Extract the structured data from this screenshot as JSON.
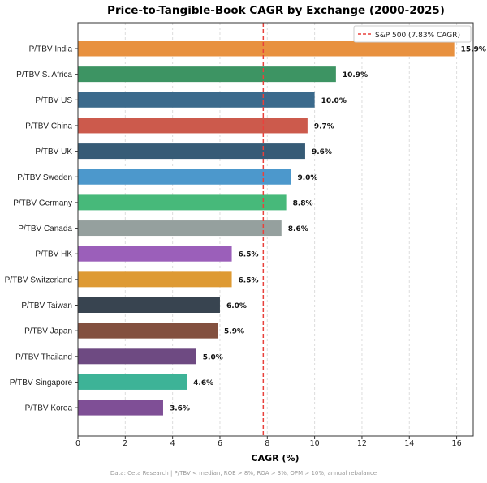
{
  "chart_data": {
    "type": "bar",
    "orientation": "horizontal",
    "title": "Price-to-Tangible-Book CAGR by Exchange (2000-2025)",
    "xlabel": "CAGR (%)",
    "ylabel": "",
    "xlim": [
      0,
      16.7
    ],
    "xticks": [
      0,
      2,
      4,
      6,
      8,
      10,
      12,
      14,
      16
    ],
    "grid": "vertical dashed",
    "categories": [
      "P/TBV India",
      "P/TBV S. Africa",
      "P/TBV US",
      "P/TBV China",
      "P/TBV UK",
      "P/TBV Sweden",
      "P/TBV Germany",
      "P/TBV Canada",
      "P/TBV HK",
      "P/TBV Switzerland",
      "P/TBV Taiwan",
      "P/TBV Japan",
      "P/TBV Thailand",
      "P/TBV Singapore",
      "P/TBV Korea"
    ],
    "values": [
      15.9,
      10.9,
      10.0,
      9.7,
      9.6,
      9.0,
      8.8,
      8.6,
      6.5,
      6.5,
      6.0,
      5.9,
      5.0,
      4.6,
      3.6
    ],
    "labels": [
      "15.9%",
      "10.9%",
      "10.0%",
      "9.7%",
      "9.6%",
      "9.0%",
      "8.8%",
      "8.6%",
      "6.5%",
      "6.5%",
      "6.0%",
      "5.9%",
      "5.0%",
      "4.6%",
      "3.6%"
    ],
    "colors": [
      "#e8913f",
      "#3d9463",
      "#3b6a8c",
      "#cc5a4c",
      "#365b76",
      "#4c98cc",
      "#47b97a",
      "#95a09e",
      "#9b5fba",
      "#de9a33",
      "#384450",
      "#83503f",
      "#6e4a82",
      "#3db397",
      "#7f4f96"
    ],
    "reference_line": {
      "value": 7.83,
      "label": "S&P 500 (7.83% CAGR)",
      "color": "#e8413c"
    },
    "legend_position": "top-right",
    "footnote": "Data: Ceta Research | P/TBV < median, ROE > 8%, ROA > 3%, OPM > 10%, annual rebalance"
  }
}
